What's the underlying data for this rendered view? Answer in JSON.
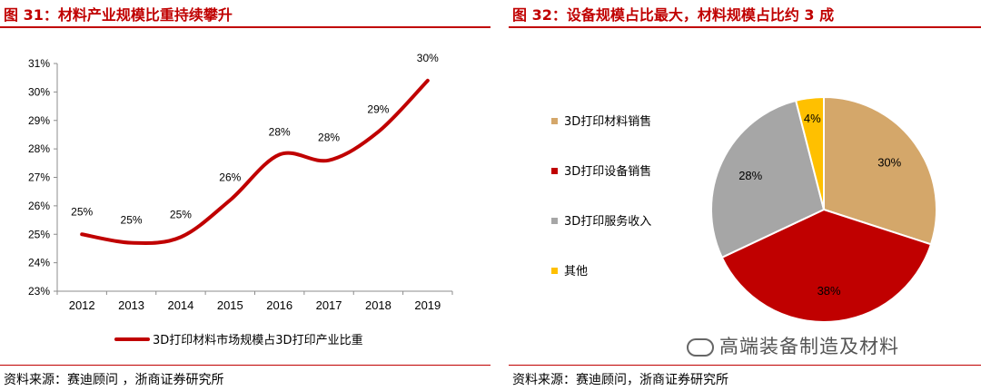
{
  "left": {
    "title": "图 31：材料产业规模比重持续攀升",
    "source": "资料来源：赛迪顾问 ，浙商证券研究所"
  },
  "right": {
    "title": "图 32：设备规模占比最大，材料规模占比约 3 成",
    "source": "资料来源：赛迪顾问，浙商证券研究所",
    "watermark": "高端装备制造及材料"
  },
  "chart_data": [
    {
      "type": "line",
      "x": [
        "2012",
        "2013",
        "2014",
        "2015",
        "2016",
        "2017",
        "2018",
        "2019"
      ],
      "series": [
        {
          "name": "3D打印材料市场规模占3D打印产业比重",
          "values": [
            25.0,
            24.7,
            24.9,
            26.2,
            27.8,
            27.6,
            28.6,
            30.4
          ],
          "labels": [
            "25%",
            "25%",
            "25%",
            "26%",
            "28%",
            "28%",
            "29%",
            "30%"
          ],
          "color": "#c00000"
        }
      ],
      "yticks": [
        "23%",
        "24%",
        "25%",
        "26%",
        "27%",
        "28%",
        "29%",
        "30%",
        "31%"
      ],
      "ylim": [
        23,
        31
      ],
      "smooth": true,
      "legend": "bottom"
    },
    {
      "type": "pie",
      "slices": [
        {
          "name": "3D打印材料销售",
          "value": 30,
          "label": "30%",
          "color": "#d4a76a"
        },
        {
          "name": "3D打印设备销售",
          "value": 38,
          "label": "38%",
          "color": "#c00000"
        },
        {
          "name": "3D打印服务收入",
          "value": 28,
          "label": "28%",
          "color": "#a6a6a6"
        },
        {
          "name": "其他",
          "value": 4,
          "label": "4%",
          "color": "#ffc000"
        }
      ],
      "legend": "left"
    }
  ]
}
